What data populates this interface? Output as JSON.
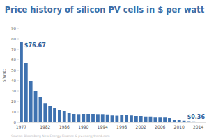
{
  "chart_data": {
    "type": "bar",
    "title": "Price history of silicon PV cells in $ per watt",
    "y_label": "$/watt",
    "source": "Source: Bloomberg New Energy Finance & pv.energytrend.com",
    "categories": [
      "1977",
      null,
      null,
      null,
      null,
      "1982",
      null,
      null,
      null,
      "1986",
      null,
      null,
      null,
      "1990",
      null,
      null,
      null,
      "1994",
      null,
      null,
      null,
      "1998",
      null,
      null,
      null,
      "2002",
      null,
      null,
      null,
      "2006",
      null,
      null,
      null,
      "2010",
      null,
      null,
      null,
      "2014",
      null
    ],
    "values": [
      76.67,
      57,
      40,
      30,
      24,
      18.5,
      16,
      13.5,
      12,
      11,
      9,
      8,
      7.8,
      8,
      8,
      8,
      7.8,
      7.8,
      7.5,
      6.5,
      6.3,
      6.8,
      7,
      6.5,
      6,
      6,
      5.5,
      5.5,
      4.5,
      4.5,
      4.5,
      4,
      2.5,
      2,
      1.5,
      1,
      0.8,
      0.6,
      0.36
    ],
    "value_labels": [
      "$76.67",
      null,
      null,
      null,
      null,
      null,
      null,
      null,
      null,
      null,
      null,
      null,
      null,
      null,
      null,
      null,
      null,
      null,
      null,
      null,
      null,
      null,
      null,
      null,
      null,
      null,
      null,
      null,
      null,
      null,
      null,
      null,
      null,
      null,
      null,
      null,
      null,
      null,
      "$0.36"
    ],
    "data_labels": true,
    "color": "#3f72b0",
    "ylim": [
      0,
      90
    ],
    "yticks": [
      0,
      10,
      20,
      30,
      40,
      50,
      60,
      70,
      80,
      90
    ],
    "grid": false
  }
}
